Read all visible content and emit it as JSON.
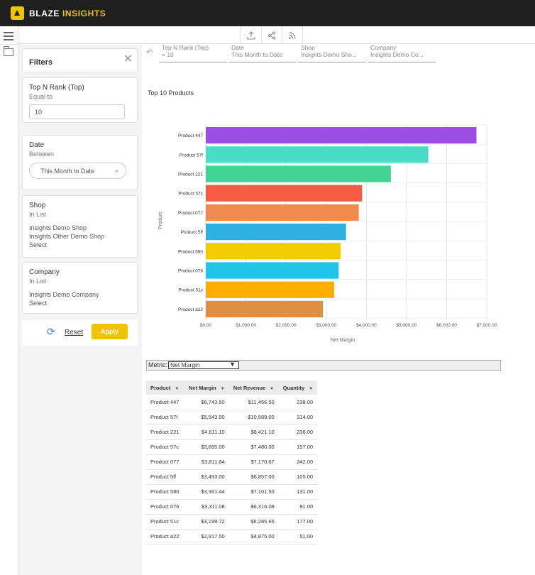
{
  "brand": {
    "part1": "BLAZE",
    "part2": "INSIGHTS"
  },
  "toolbar": {
    "icons": [
      "upload-icon",
      "share-icon",
      "rss-icon"
    ]
  },
  "filters_panel": {
    "title": "Filters",
    "cards": [
      {
        "title": "Top N Rank (Top)",
        "operator": "Equal to",
        "value": "10"
      },
      {
        "title": "Date",
        "operator": "Between",
        "value": "This Month to Date"
      },
      {
        "title": "Shop",
        "operator": "In List",
        "values": [
          "Insights Demo Shop",
          "Insights Other Demo Shop",
          "Select"
        ]
      },
      {
        "title": "Company",
        "operator": "In List",
        "values": [
          "Insights Demo Company",
          "Select"
        ]
      }
    ],
    "reset_label": "Reset",
    "apply_label": "Apply"
  },
  "filter_summary": [
    {
      "name": "Top N Rank (Top)",
      "value": "= 10"
    },
    {
      "name": "Date",
      "value": "This Month to Date"
    },
    {
      "name": "Shop",
      "value": "Insights Demo Sho..."
    },
    {
      "name": "Company",
      "value": "Insights Demo Co..."
    }
  ],
  "chart_data": {
    "type": "bar",
    "orientation": "horizontal",
    "title": "Top 10 Products",
    "xlabel": "Net Margin",
    "ylabel": "Product",
    "categories": [
      "Product 447",
      "Product 57f",
      "Product 221",
      "Product 57c",
      "Product 077",
      "Product 5ff",
      "Product 580",
      "Product 076",
      "Product 51c",
      "Product a22"
    ],
    "values": [
      6743.5,
      5543.5,
      4611.1,
      3895.0,
      3811.84,
      3493.0,
      3361.44,
      3311.08,
      3199.72,
      2917.5
    ],
    "colors": [
      "#9b4fe0",
      "#49dcc6",
      "#41d494",
      "#f55c43",
      "#ef8b4c",
      "#2eb0e2",
      "#f2cb00",
      "#1fc5ea",
      "#ffaf00",
      "#e08e42"
    ],
    "xlim": [
      0,
      7000
    ],
    "xticks": [
      "$0.00",
      "$1,000.00",
      "$2,000.00",
      "$3,000.00",
      "$4,000.00",
      "$5,000.00",
      "$6,000.00",
      "$7,000.00"
    ],
    "grid": true,
    "legend": "none"
  },
  "metric": {
    "label": "Metric:",
    "selected": "Net Margin"
  },
  "table": {
    "headers": [
      "Product",
      "Net Margin",
      "Net Revenue",
      "Quantity"
    ],
    "rows": [
      [
        "Product 447",
        "$6,743.50",
        "$11,456.50",
        "238.00"
      ],
      [
        "Product 57f",
        "$5,543.50",
        "$10,589.00",
        "314.00"
      ],
      [
        "Product 221",
        "$4,611.10",
        "$8,421.10",
        "236.00"
      ],
      [
        "Product 57c",
        "$3,895.00",
        "$7,480.00",
        "157.00"
      ],
      [
        "Product 077",
        "$3,811.84",
        "$7,170.67",
        "242.00"
      ],
      [
        "Product 5ff",
        "$3,493.00",
        "$6,857.00",
        "105.00"
      ],
      [
        "Product 580",
        "$3,361.44",
        "$7,101.50",
        "131.00"
      ],
      [
        "Product 076",
        "$3,311.08",
        "$6,316.09",
        "91.00"
      ],
      [
        "Product 51c",
        "$3,199.72",
        "$6,285.65",
        "177.00"
      ],
      [
        "Product a22",
        "$2,917.50",
        "$4,875.00",
        "51.00"
      ]
    ]
  }
}
